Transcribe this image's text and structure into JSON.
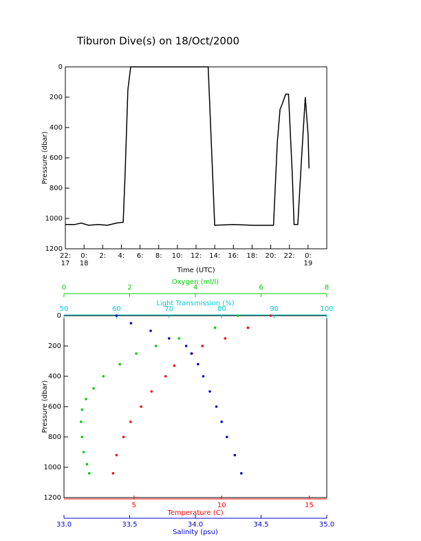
{
  "chart_data": [
    {
      "type": "line",
      "title": "Tiburon Dive(s) on 18/Oct/2000",
      "xlabel": "Time (UTC)",
      "ylabel": "Pressure (dbar)",
      "xlim": [
        -2,
        26
      ],
      "ylim": [
        1200,
        0
      ],
      "xticks": [
        {
          "value": -2,
          "label": "22:\n17"
        },
        {
          "value": 0,
          "label": "0:\n18"
        },
        {
          "value": 2,
          "label": "2:"
        },
        {
          "value": 4,
          "label": "4:"
        },
        {
          "value": 6,
          "label": "6:"
        },
        {
          "value": 8,
          "label": "8:"
        },
        {
          "value": 10,
          "label": "10:"
        },
        {
          "value": 12,
          "label": "12:"
        },
        {
          "value": 14,
          "label": "14:"
        },
        {
          "value": 16,
          "label": "16:"
        },
        {
          "value": 18,
          "label": "18:"
        },
        {
          "value": 20,
          "label": "20:"
        },
        {
          "value": 22,
          "label": "22:"
        },
        {
          "value": 24,
          "label": "0:\n19"
        }
      ],
      "yticks": [
        0,
        200,
        400,
        600,
        800,
        1000,
        1200
      ],
      "series": [
        {
          "color": "#000000",
          "x": [
            -2.0,
            -1.0,
            -0.3,
            0.5,
            1.5,
            2.5,
            3.5,
            4.2,
            4.4,
            4.7,
            5.0,
            13.3,
            13.7,
            14.0,
            16.0,
            18.0,
            20.3,
            20.7,
            21.0,
            21.2,
            21.6,
            21.9,
            22.3,
            22.5,
            22.9,
            23.3,
            23.7,
            24.0,
            24.1
          ],
          "values": [
            1040,
            1040,
            1030,
            1045,
            1040,
            1045,
            1030,
            1025,
            700,
            150,
            0,
            0,
            600,
            1045,
            1040,
            1045,
            1045,
            500,
            280,
            250,
            180,
            180,
            700,
            1040,
            1040,
            600,
            200,
            450,
            670
          ]
        }
      ]
    },
    {
      "type": "scatter",
      "ylabel": "Pressure (dbar)",
      "ylim": [
        1200,
        0
      ],
      "yticks": [
        0,
        200,
        400,
        600,
        800,
        1000,
        1200
      ],
      "x_axes": [
        {
          "label": "Oxygen (ml/l)",
          "position": "top",
          "color": "#00cc00",
          "xlim": [
            0,
            8
          ],
          "xticks": [
            0,
            2,
            4,
            6,
            8
          ]
        },
        {
          "label": "Light Transmission (%)",
          "position": "top",
          "color": "#00cccc",
          "xlim": [
            50,
            100
          ],
          "xticks": [
            50,
            60,
            70,
            80,
            90,
            100
          ]
        },
        {
          "label": "Temperature (C)",
          "position": "bottom",
          "color": "#ff0000",
          "xlim": [
            1,
            16
          ],
          "xticks": [
            5,
            10,
            15
          ]
        },
        {
          "label": "Salinity (psu)",
          "position": "bottom",
          "color": "#0000cc",
          "xlim": [
            33,
            35
          ],
          "xticks": [
            {
              "value": 33,
              "label": "33.0"
            },
            33.5,
            {
              "value": 34,
              "label": "34.0"
            },
            34.5,
            {
              "value": 35,
              "label": "35.0"
            }
          ]
        }
      ],
      "series": [
        {
          "axis": 0,
          "color": "#00cc00",
          "x": [
            5.3,
            4.6,
            3.5,
            2.8,
            2.2,
            1.7,
            1.2,
            0.9,
            0.67,
            0.55,
            0.52,
            0.55,
            0.6,
            0.7,
            0.77
          ],
          "values": [
            0,
            80,
            150,
            200,
            250,
            320,
            400,
            480,
            550,
            620,
            700,
            800,
            900,
            980,
            1040
          ]
        },
        {
          "axis": 2,
          "color": "#ff0000",
          "x": [
            12.8,
            11.5,
            10.2,
            8.9,
            8.3,
            7.3,
            6.8,
            6.0,
            5.4,
            4.8,
            4.4,
            4.0,
            3.8
          ],
          "values": [
            0,
            80,
            150,
            200,
            250,
            330,
            400,
            500,
            600,
            700,
            800,
            920,
            1040
          ]
        },
        {
          "axis": 3,
          "color": "#0000cc",
          "x": [
            33.4,
            33.51,
            33.66,
            33.8,
            33.93,
            33.97,
            34.02,
            34.06,
            34.11,
            34.16,
            34.2,
            34.24,
            34.3,
            34.35
          ],
          "values": [
            0,
            50,
            100,
            150,
            200,
            250,
            320,
            400,
            500,
            600,
            700,
            800,
            920,
            1040
          ]
        }
      ]
    }
  ]
}
